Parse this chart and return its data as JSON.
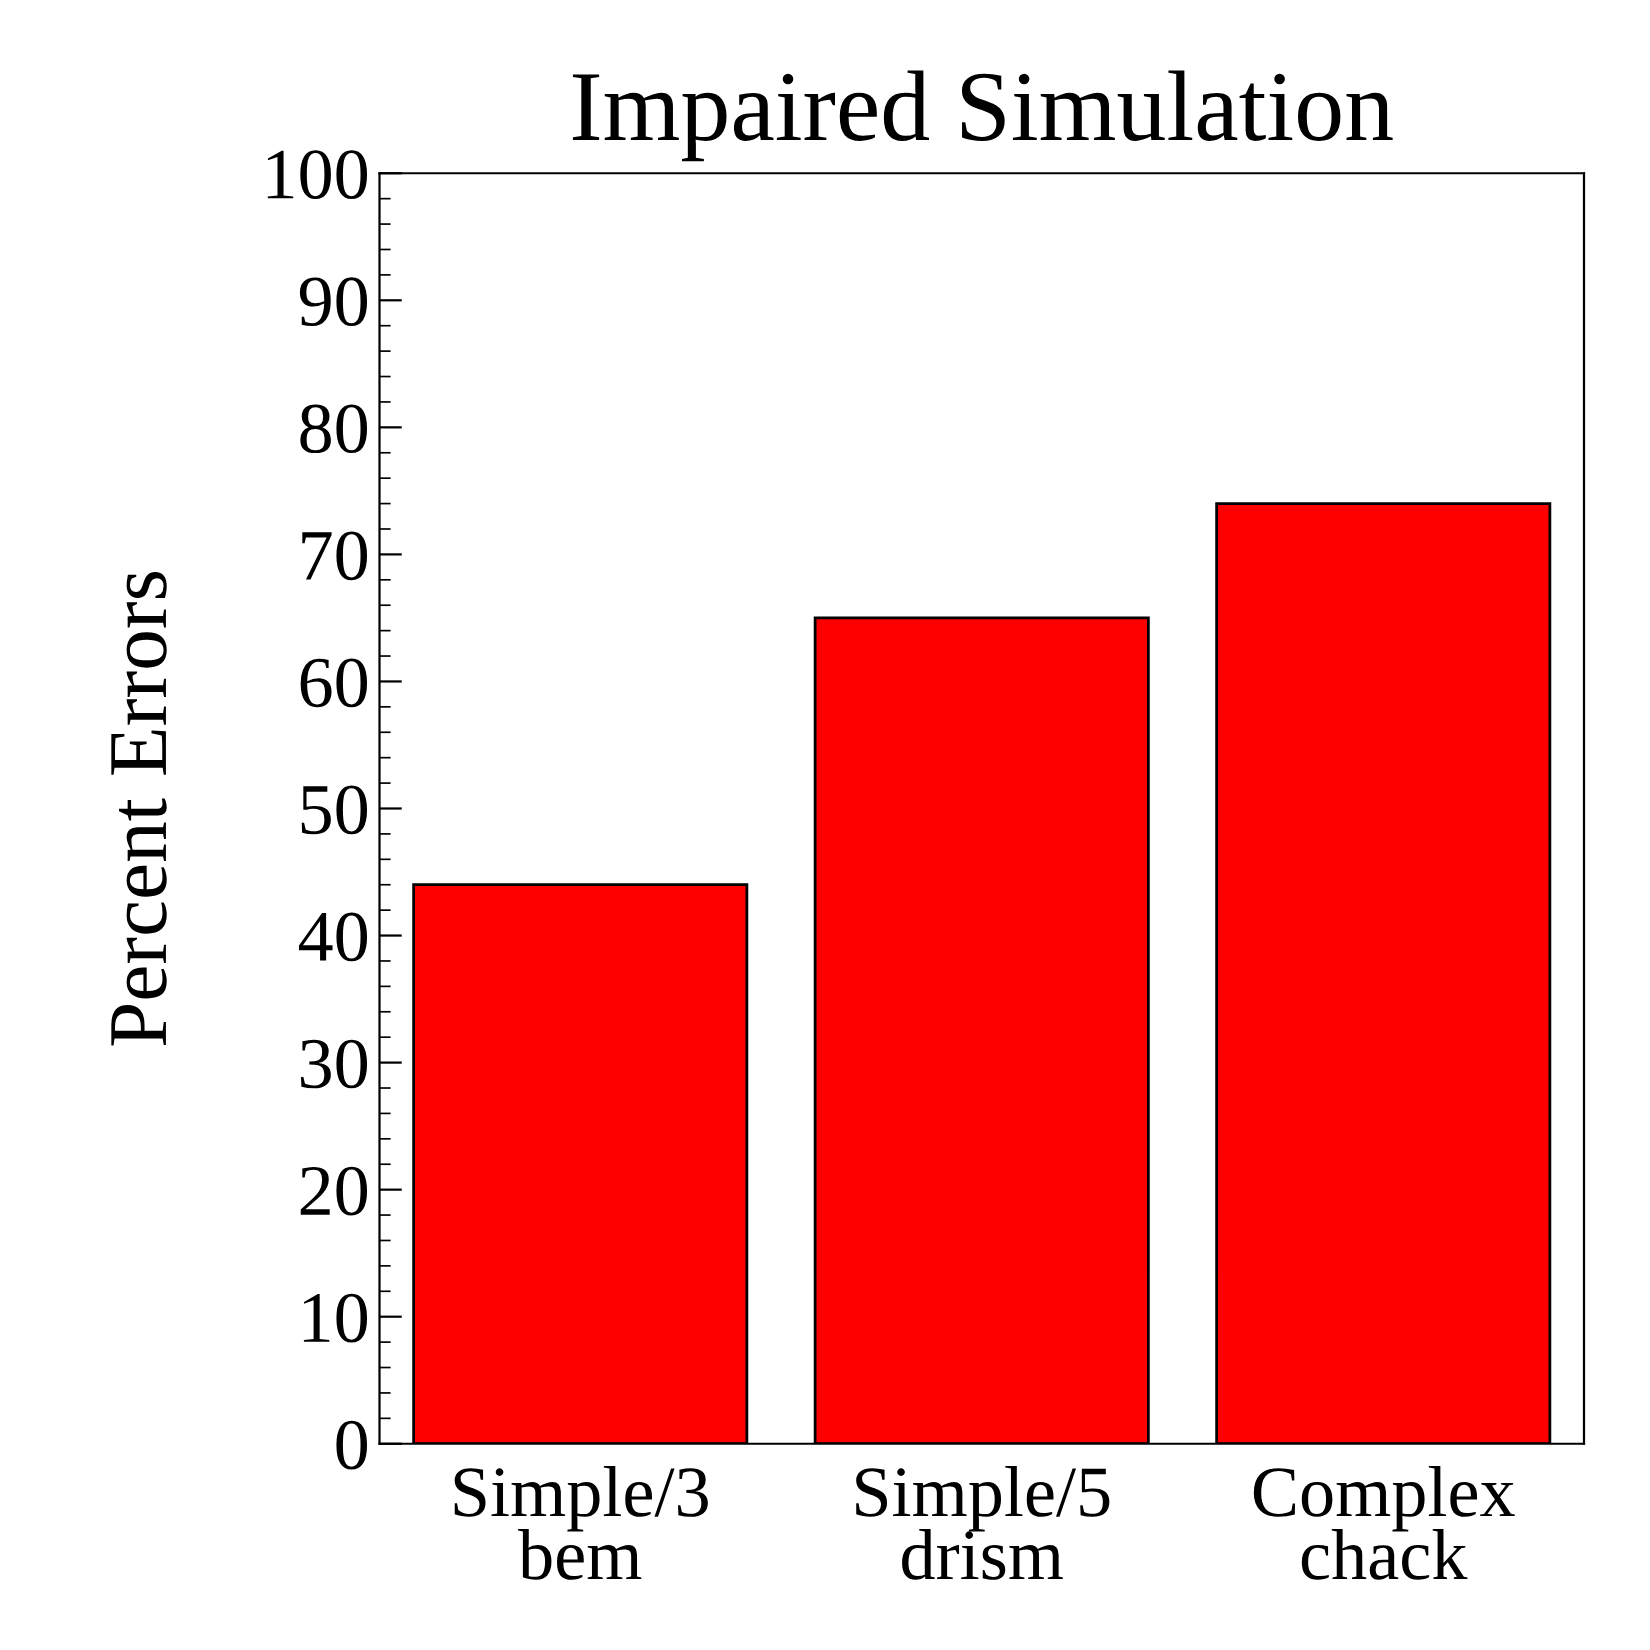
{
  "chart_data": {
    "type": "bar",
    "title": "Impaired Simulation",
    "ylabel": "Percent Errors",
    "categories": [
      "Simple/3\nbem",
      "Simple/5\ndrism",
      "Complex\nchack"
    ],
    "values": [
      44,
      65,
      74
    ],
    "color": "#ff0000",
    "ylim": [
      0,
      100
    ],
    "yticks": [
      0,
      10,
      20,
      30,
      40,
      50,
      60,
      70,
      80,
      90,
      100
    ],
    "grid": false
  }
}
